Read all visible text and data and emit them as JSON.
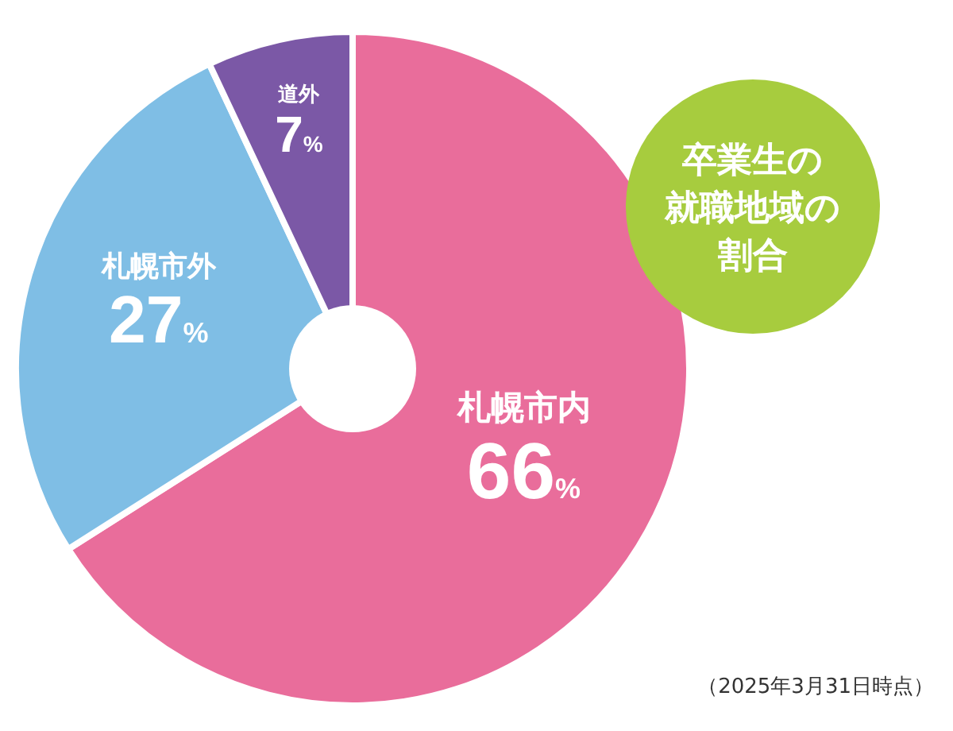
{
  "chart_data": {
    "type": "pie",
    "title": "卒業生の就職地域の割合",
    "categories": [
      "札幌市内",
      "札幌市外",
      "道外"
    ],
    "values": [
      66,
      27,
      7
    ],
    "colors": [
      "#e96d9b",
      "#7fbee5",
      "#7b58a6"
    ],
    "value_labels": [
      "66%",
      "27%",
      "7%"
    ],
    "annotations": [
      "（2025年3月31日時点）"
    ]
  }
}
